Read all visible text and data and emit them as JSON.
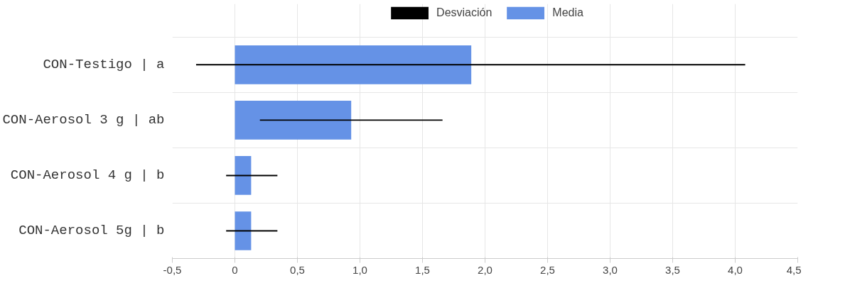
{
  "chart_data": {
    "type": "bar",
    "orientation": "horizontal",
    "categories": [
      "CON-Testigo | a",
      "CON-Aerosol 3 g | ab",
      "CON-Aerosol 4 g | b",
      "CON-Aerosol 5g | b"
    ],
    "series": [
      {
        "name": "Desviación",
        "color": "#000000",
        "base": [
          -0.31,
          0.2,
          -0.07,
          -0.07
        ],
        "values": [
          4.39,
          1.46,
          0.41,
          0.41
        ]
      },
      {
        "name": "Media",
        "color": "#6592e6",
        "values": [
          1.89,
          0.93,
          0.13,
          0.13
        ]
      }
    ],
    "xlim": [
      -0.5,
      4.5
    ],
    "xticks": [
      {
        "value": -0.5,
        "label": "-0,5"
      },
      0,
      {
        "value": 0.5,
        "label": "0,5"
      },
      {
        "value": 1,
        "label": "1,0"
      },
      {
        "value": 1.5,
        "label": "1,5"
      },
      {
        "value": 2,
        "label": "2,0"
      },
      {
        "value": 2.5,
        "label": "2,5"
      },
      {
        "value": 3,
        "label": "3,0"
      },
      {
        "value": 3.5,
        "label": "3,5"
      },
      {
        "value": 4,
        "label": "4,0"
      },
      {
        "value": 4.5,
        "label": "4,5"
      }
    ],
    "grid": true,
    "legend": "top"
  }
}
